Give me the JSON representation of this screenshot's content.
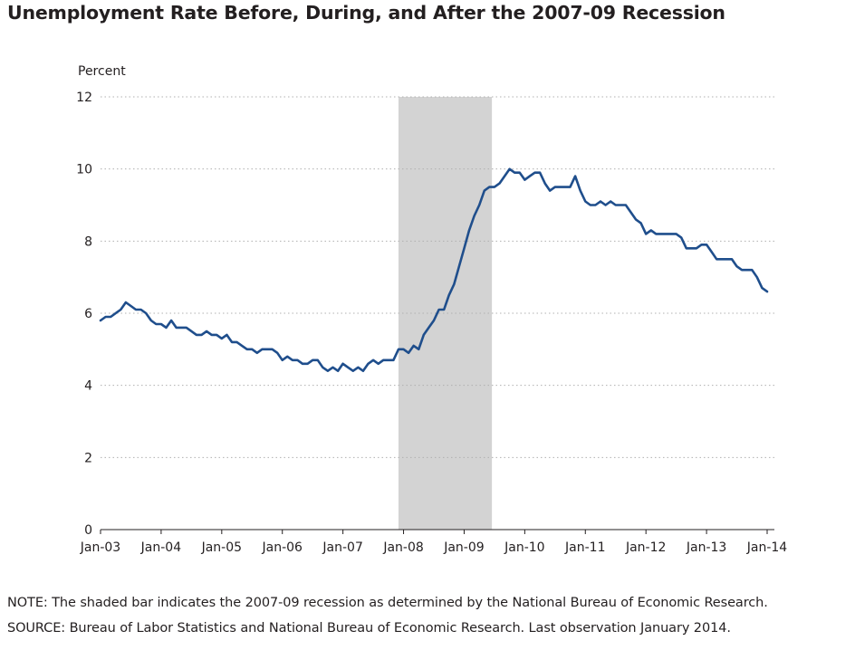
{
  "title": "Unemployment Rate Before, During, and After the 2007-09 Recession",
  "note": "NOTE: The shaded bar indicates the 2007-09 recession as determined by the National Bureau of Economic Research.",
  "source": "SOURCE: Bureau of Labor Statistics and National Bureau of Economic Research. Last observation January 2014.",
  "colors": {
    "line": "#1f4e8c",
    "recession": "#d3d3d3",
    "grid": "#b0b0b0",
    "text": "#231f20"
  },
  "chart_data": {
    "type": "line",
    "title": "Unemployment Rate Before, During, and After the 2007-09 Recession",
    "ylabel": "Percent",
    "xlabel": "",
    "ylim": [
      0,
      12
    ],
    "yticks": [
      0,
      2,
      4,
      6,
      8,
      10,
      12
    ],
    "xlim": [
      "2003-01",
      "2014-01"
    ],
    "xtick_labels": [
      "Jan-03",
      "Jan-04",
      "Jan-05",
      "Jan-06",
      "Jan-07",
      "Jan-08",
      "Jan-09",
      "Jan-10",
      "Jan-11",
      "Jan-12",
      "Jan-13",
      "Jan-14"
    ],
    "grid": "horizontal dotted",
    "shaded_region": {
      "label": "2007-09 recession",
      "start": "2007-12",
      "end": "2009-06"
    },
    "series": [
      {
        "start": "2003-01",
        "frequency": "monthly",
        "values": [
          5.8,
          5.9,
          5.9,
          6.0,
          6.1,
          6.3,
          6.2,
          6.1,
          6.1,
          6.0,
          5.8,
          5.7,
          5.7,
          5.6,
          5.8,
          5.6,
          5.6,
          5.6,
          5.5,
          5.4,
          5.4,
          5.5,
          5.4,
          5.4,
          5.3,
          5.4,
          5.2,
          5.2,
          5.1,
          5.0,
          5.0,
          4.9,
          5.0,
          5.0,
          5.0,
          4.9,
          4.7,
          4.8,
          4.7,
          4.7,
          4.6,
          4.6,
          4.7,
          4.7,
          4.5,
          4.4,
          4.5,
          4.4,
          4.6,
          4.5,
          4.4,
          4.5,
          4.4,
          4.6,
          4.7,
          4.6,
          4.7,
          4.7,
          4.7,
          5.0,
          5.0,
          4.9,
          5.1,
          5.0,
          5.4,
          5.6,
          5.8,
          6.1,
          6.1,
          6.5,
          6.8,
          7.3,
          7.8,
          8.3,
          8.7,
          9.0,
          9.4,
          9.5,
          9.5,
          9.6,
          9.8,
          10.0,
          9.9,
          9.9,
          9.7,
          9.8,
          9.9,
          9.9,
          9.6,
          9.4,
          9.5,
          9.5,
          9.5,
          9.5,
          9.8,
          9.4,
          9.1,
          9.0,
          9.0,
          9.1,
          9.0,
          9.1,
          9.0,
          9.0,
          9.0,
          8.8,
          8.6,
          8.5,
          8.2,
          8.3,
          8.2,
          8.2,
          8.2,
          8.2,
          8.2,
          8.1,
          7.8,
          7.8,
          7.8,
          7.9,
          7.9,
          7.7,
          7.5,
          7.5,
          7.5,
          7.5,
          7.3,
          7.2,
          7.2,
          7.2,
          7.0,
          6.7,
          6.6
        ]
      }
    ]
  }
}
